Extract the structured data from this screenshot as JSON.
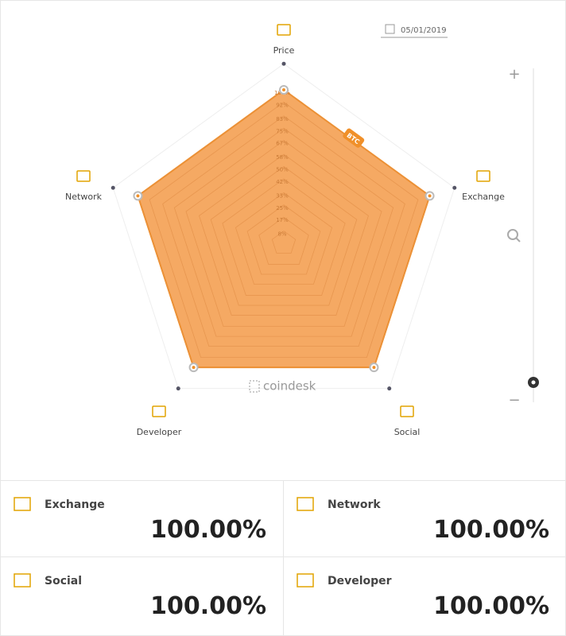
{
  "date": "05/01/2019",
  "chart_data": {
    "type": "radar",
    "axes": [
      "Price",
      "Exchange",
      "Social",
      "Developer",
      "Network"
    ],
    "series": [
      {
        "name": "BTC",
        "color": "#f5a963",
        "values": [
          100,
          100,
          100,
          100,
          100
        ]
      }
    ],
    "rlim": [
      0,
      100
    ],
    "rticks": [
      {
        "value": 8,
        "label": "8%"
      },
      {
        "value": 17,
        "label": "17%"
      },
      {
        "value": 25,
        "label": "25%"
      },
      {
        "value": 33,
        "label": "33%"
      },
      {
        "value": 42,
        "label": "42%"
      },
      {
        "value": 50,
        "label": "50%"
      },
      {
        "value": 58,
        "label": "58%"
      },
      {
        "value": 67,
        "label": "67%"
      },
      {
        "value": 75,
        "label": "75%"
      },
      {
        "value": 83,
        "label": "83%"
      },
      {
        "value": 92,
        "label": "92%"
      },
      {
        "value": 100,
        "label": "100%"
      }
    ],
    "grid": true
  },
  "watermark": "coindesk",
  "zoom": {
    "plus": "+",
    "minus": "−"
  },
  "cards": [
    {
      "label": "Exchange",
      "value": "100.00%"
    },
    {
      "label": "Network",
      "value": "100.00%"
    },
    {
      "label": "Social",
      "value": "100.00%"
    },
    {
      "label": "Developer",
      "value": "100.00%"
    }
  ]
}
